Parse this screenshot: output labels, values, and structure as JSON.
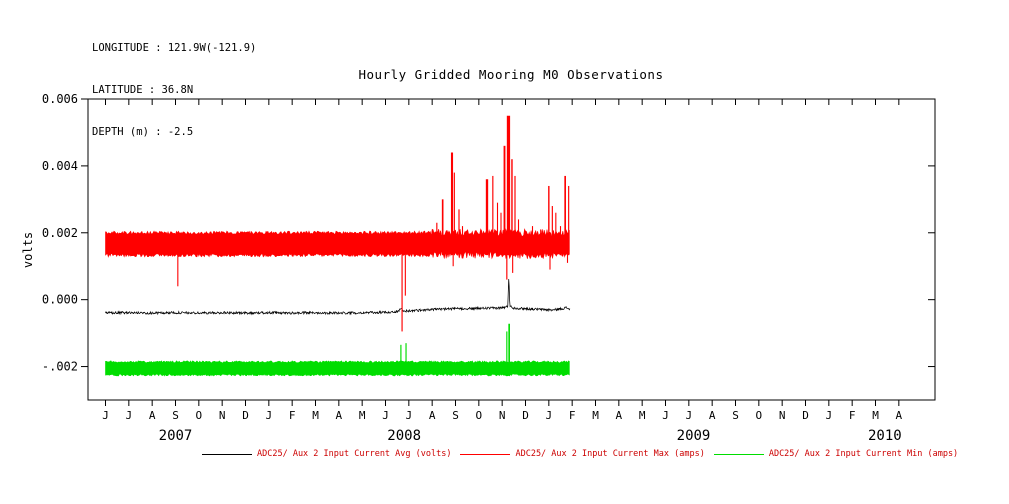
{
  "station": {
    "longitude": "LONGITUDE : 121.9W(-121.9)",
    "latitude": "LATITUDE : 36.8N",
    "depth": "DEPTH (m) : -2.5"
  },
  "chart_data": {
    "type": "line",
    "title": "Hourly Gridded Mooring M0 Observations",
    "xlabel": "",
    "ylabel": "volts",
    "grid": false,
    "legend_position": "bottom",
    "ylim": [
      -0.003,
      0.006
    ],
    "yticks": [
      {
        "value": 0.006,
        "label": "0.006"
      },
      {
        "value": 0.004,
        "label": "0.004"
      },
      {
        "value": 0.002,
        "label": "0.002"
      },
      {
        "value": 0.0,
        "label": "0.000"
      },
      {
        "value": -0.002,
        "label": "-.002"
      }
    ],
    "xlim_months": [
      -0.75,
      35.55
    ],
    "month_ticks": [
      "J",
      "J",
      "A",
      "S",
      "O",
      "N",
      "D",
      "J",
      "F",
      "M",
      "A",
      "M",
      "J",
      "J",
      "A",
      "S",
      "O",
      "N",
      "D",
      "J",
      "F",
      "M",
      "A",
      "M",
      "J",
      "J",
      "A",
      "S",
      "O",
      "N",
      "D",
      "J",
      "F",
      "M",
      "A"
    ],
    "year_labels": [
      {
        "label": "2007",
        "x_month": 3.0
      },
      {
        "label": "2008",
        "x_month": 12.8
      },
      {
        "label": "2009",
        "x_month": 25.2
      },
      {
        "label": "2010",
        "x_month": 33.4
      }
    ],
    "series": [
      {
        "id": "avg",
        "name": "ADC25/ Aux 2 Input Current Avg (volts)",
        "color": "#000000",
        "style": "noisy-line",
        "noise": 3.5e-05,
        "x_range": [
          0,
          19.9
        ],
        "points": [
          [
            0,
            -0.0004
          ],
          [
            1,
            -0.00039
          ],
          [
            2,
            -0.0004
          ],
          [
            3,
            -0.00039
          ],
          [
            4,
            -0.0004
          ],
          [
            5,
            -0.00039
          ],
          [
            6,
            -0.0004
          ],
          [
            7,
            -0.00039
          ],
          [
            8,
            -0.0004
          ],
          [
            9,
            -0.00039
          ],
          [
            10,
            -0.0004
          ],
          [
            11,
            -0.00039
          ],
          [
            12,
            -0.00038
          ],
          [
            12.55,
            -0.00036
          ],
          [
            12.65,
            -0.00024
          ],
          [
            12.75,
            -0.00034
          ],
          [
            13.2,
            -0.00033
          ],
          [
            13.8,
            -0.0003
          ],
          [
            14.5,
            -0.00028
          ],
          [
            15.2,
            -0.00027
          ],
          [
            16,
            -0.00026
          ],
          [
            16.8,
            -0.00025
          ],
          [
            17.15,
            -0.00023
          ],
          [
            17.24,
            -0.0002
          ],
          [
            17.285,
            0.00073
          ],
          [
            17.33,
            -0.0002
          ],
          [
            17.5,
            -0.00025
          ],
          [
            18,
            -0.00027
          ],
          [
            18.6,
            -0.00029
          ],
          [
            19.2,
            -0.00031
          ],
          [
            19.55,
            -0.00027
          ],
          [
            19.75,
            -0.00024
          ],
          [
            19.9,
            -0.00028
          ]
        ]
      },
      {
        "id": "max",
        "name": "ADC25/ Aux 2 Input Current Max (amps)",
        "color": "#ff0000",
        "style": "band",
        "band": {
          "x_start": 0,
          "x_end": 19.9,
          "y_low": 0.00133,
          "y_high": 0.002,
          "edge_noise": 5e-05,
          "rough_from": 13.9,
          "rough_noise": 0.00011
        },
        "spikes_up": [
          [
            14.2,
            0.0023,
            0.05
          ],
          [
            14.45,
            0.003,
            0.07
          ],
          [
            14.85,
            0.0044,
            0.09
          ],
          [
            14.95,
            0.0038,
            0.05
          ],
          [
            15.15,
            0.0027,
            0.05
          ],
          [
            15.3,
            0.0022,
            0.04
          ],
          [
            16.35,
            0.0036,
            0.1
          ],
          [
            16.6,
            0.0037,
            0.05
          ],
          [
            16.8,
            0.0029,
            0.04
          ],
          [
            16.95,
            0.0026,
            0.04
          ],
          [
            17.1,
            0.0046,
            0.08
          ],
          [
            17.27,
            0.0055,
            0.14
          ],
          [
            17.42,
            0.0042,
            0.06
          ],
          [
            17.55,
            0.0037,
            0.05
          ],
          [
            17.7,
            0.0024,
            0.04
          ],
          [
            18.3,
            0.0022,
            0.04
          ],
          [
            18.65,
            0.0021,
            0.04
          ],
          [
            19.0,
            0.0034,
            0.06
          ],
          [
            19.15,
            0.0028,
            0.05
          ],
          [
            19.3,
            0.0026,
            0.04
          ],
          [
            19.5,
            0.0022,
            0.04
          ],
          [
            19.7,
            0.0037,
            0.07
          ],
          [
            19.85,
            0.0034,
            0.05
          ]
        ],
        "spikes_down": [
          [
            3.1,
            0.0004,
            0.04
          ],
          [
            12.71,
            -0.00095,
            0.05
          ],
          [
            12.85,
            0.00012,
            0.04
          ],
          [
            14.9,
            0.001,
            0.04
          ],
          [
            17.2,
            0.0006,
            0.05
          ],
          [
            17.45,
            0.0008,
            0.04
          ],
          [
            19.05,
            0.0009,
            0.04
          ],
          [
            19.8,
            0.0011,
            0.04
          ]
        ]
      },
      {
        "id": "min",
        "name": "ADC25/ Aux 2 Input Current Min (amps)",
        "color": "#00dd00",
        "style": "band",
        "band": {
          "x_start": 0,
          "x_end": 19.9,
          "y_low": -0.00225,
          "y_high": -0.00186,
          "edge_noise": 3e-05
        },
        "spikes_up": [
          [
            12.66,
            -0.00135,
            0.05
          ],
          [
            12.88,
            -0.0013,
            0.05
          ],
          [
            17.2,
            -0.00095,
            0.05
          ],
          [
            17.3,
            -0.00072,
            0.07
          ]
        ],
        "spikes_down": []
      }
    ],
    "legend": [
      {
        "label": "ADC25/ Aux 2 Input Current Avg (volts)",
        "line_color": "#000000",
        "text_color": "#cc0000"
      },
      {
        "label": "ADC25/ Aux 2 Input Current Max (amps)",
        "line_color": "#ff0000",
        "text_color": "#cc0000"
      },
      {
        "label": "ADC25/ Aux 2 Input Current Min (amps)",
        "line_color": "#00dd00",
        "text_color": "#cc0000"
      }
    ]
  }
}
